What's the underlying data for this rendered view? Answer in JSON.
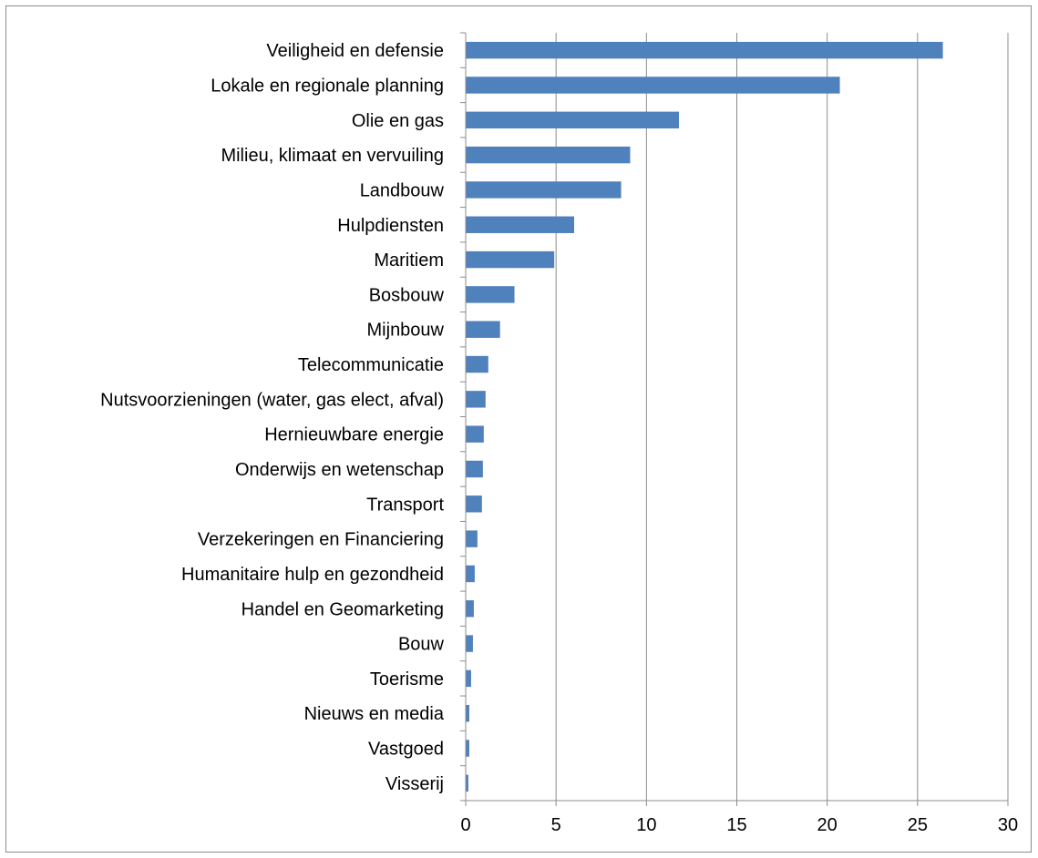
{
  "chart_data": {
    "type": "bar",
    "orientation": "horizontal",
    "categories": [
      "Veiligheid en defensie",
      "Lokale en regionale planning",
      "Olie en gas",
      "Milieu, klimaat en vervuiling",
      "Landbouw",
      "Hulpdiensten",
      "Maritiem",
      "Bosbouw",
      "Mijnbouw",
      "Telecommunicatie",
      "Nutsvoorzieningen (water, gas elect, afval)",
      "Hernieuwbare energie",
      "Onderwijs en wetenschap",
      "Transport",
      "Verzekeringen en Financiering",
      "Humanitaire hulp en gezondheid",
      "Handel en Geomarketing",
      "Bouw",
      "Toerisme",
      "Nieuws en media",
      "Vastgoed",
      "Visserij"
    ],
    "values": [
      26.4,
      20.7,
      11.8,
      9.1,
      8.6,
      6.0,
      4.9,
      2.7,
      1.9,
      1.25,
      1.1,
      1.0,
      0.95,
      0.9,
      0.65,
      0.5,
      0.45,
      0.4,
      0.3,
      0.2,
      0.2,
      0.15
    ],
    "xlim": [
      0,
      30
    ],
    "xticks": [
      "0",
      "5",
      "10",
      "15",
      "20",
      "25",
      "30"
    ],
    "tick_values": [
      0,
      5,
      10,
      15,
      20,
      25,
      30
    ],
    "grid": "vertical major gridlines",
    "legend": "none",
    "colors": {
      "bar": "#4f81bd",
      "grid": "#8c8c8c",
      "axis": "#8c8c8c",
      "border": "#8c8c8c"
    }
  }
}
